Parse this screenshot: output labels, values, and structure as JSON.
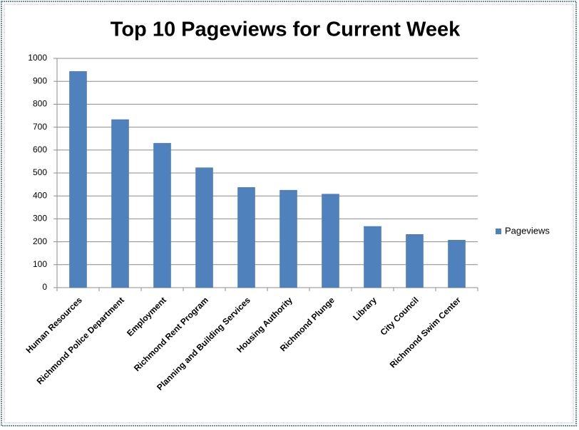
{
  "chart_data": {
    "type": "bar",
    "title": "Top 10 Pageviews for Current Week",
    "categories": [
      "Human Resources",
      "Richmond Police Department",
      "Employment",
      "Richmond Rent Program",
      "Planning and Building Services",
      "Housing Authority",
      "Richmond Plunge",
      "Library",
      "City Council",
      "Richmond Swim Center"
    ],
    "series": [
      {
        "name": "Pageviews",
        "color": "#4f81bd",
        "values": [
          943,
          733,
          630,
          523,
          437,
          425,
          408,
          267,
          232,
          207
        ]
      }
    ],
    "ylim": [
      0,
      1000
    ],
    "yticks": [
      0,
      100,
      200,
      300,
      400,
      500,
      600,
      700,
      800,
      900,
      1000
    ],
    "grid": true,
    "legend": "right"
  }
}
